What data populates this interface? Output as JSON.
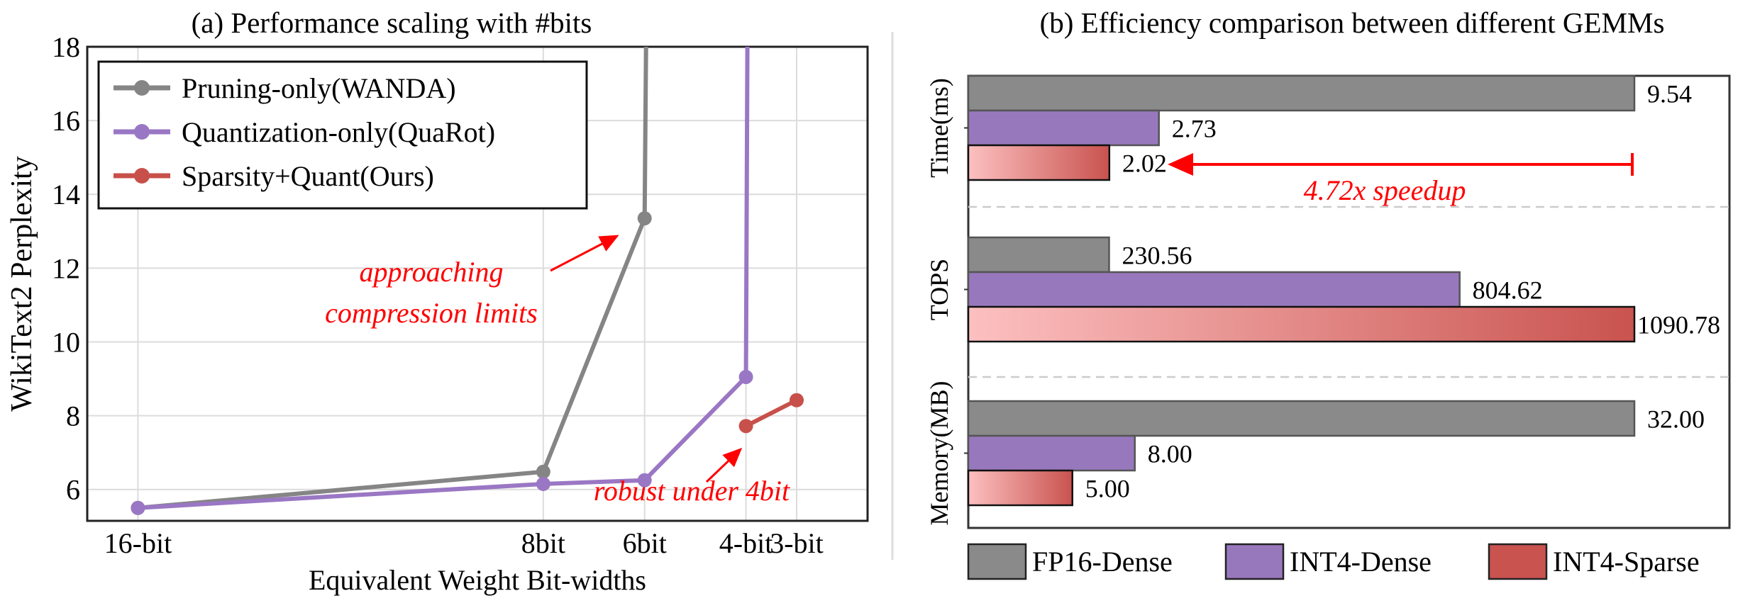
{
  "chart_data": [
    {
      "type": "line",
      "title": "(a) Performance scaling with #bits",
      "xlabel": "Equivalent Weight Bit-widths",
      "ylabel": "WikiText2 Perplexity",
      "x_reversed": true,
      "xlim": [
        17,
        1.6
      ],
      "ylim": [
        5.15,
        18
      ],
      "xticks": [
        {
          "x": 16,
          "label": "16-bit"
        },
        {
          "x": 8,
          "label": "8bit"
        },
        {
          "x": 6,
          "label": "6bit"
        },
        {
          "x": 4,
          "label": "4-bit"
        },
        {
          "x": 3,
          "label": "3-bit"
        }
      ],
      "yticks": [
        6,
        8,
        10,
        12,
        14,
        16,
        18
      ],
      "grid": true,
      "legend_position": "top-left",
      "series": [
        {
          "name": "Pruning-only(WANDA)",
          "color": "#858585",
          "points": [
            {
              "x": 16,
              "y": 5.5
            },
            {
              "x": 8,
              "y": 6.48
            },
            {
              "x": 6,
              "y": 13.35
            }
          ],
          "continues_above_ylim_at_x": 6
        },
        {
          "name": "Quantization-only(QuaRot)",
          "color": "#9a77c4",
          "points": [
            {
              "x": 16,
              "y": 5.5
            },
            {
              "x": 8,
              "y": 6.15
            },
            {
              "x": 6,
              "y": 6.25
            },
            {
              "x": 4,
              "y": 9.05
            }
          ],
          "continues_above_ylim_at_x": 4
        },
        {
          "name": "Sparsity+Quant(Ours)",
          "color": "#c8504a",
          "points": [
            {
              "x": 4,
              "y": 7.72
            },
            {
              "x": 3,
              "y": 8.42
            }
          ]
        }
      ],
      "annotations": [
        {
          "lines": [
            "approaching",
            "compression limits"
          ],
          "color": "#ff0000"
        },
        {
          "lines": [
            "robust under 4bit"
          ],
          "color": "#ff0000"
        }
      ]
    },
    {
      "type": "bar",
      "orientation": "horizontal",
      "title": "(b) Efficiency comparison between different GEMMs",
      "legend_position": "bottom",
      "series_names": [
        "FP16-Dense",
        "INT4-Dense",
        "INT4-Sparse"
      ],
      "colors": [
        "#8a8a8a",
        "#9878bd",
        "#c9534f"
      ],
      "groups": [
        {
          "label": "Time(ms)",
          "values": [
            9.54,
            2.73,
            2.02
          ],
          "labels": [
            "9.54",
            "2.73",
            "2.02"
          ]
        },
        {
          "label": "TOPS",
          "values": [
            230.56,
            804.62,
            1090.78
          ],
          "labels": [
            "230.56",
            "804.62",
            "1090.78"
          ]
        },
        {
          "label": "Memory(MB)",
          "values": [
            32.0,
            8.0,
            5.0
          ],
          "labels": [
            "32.00",
            "8.00",
            "5.00"
          ]
        }
      ],
      "annotation": {
        "text": "4.72x speedup",
        "color": "#ff0000"
      }
    }
  ]
}
